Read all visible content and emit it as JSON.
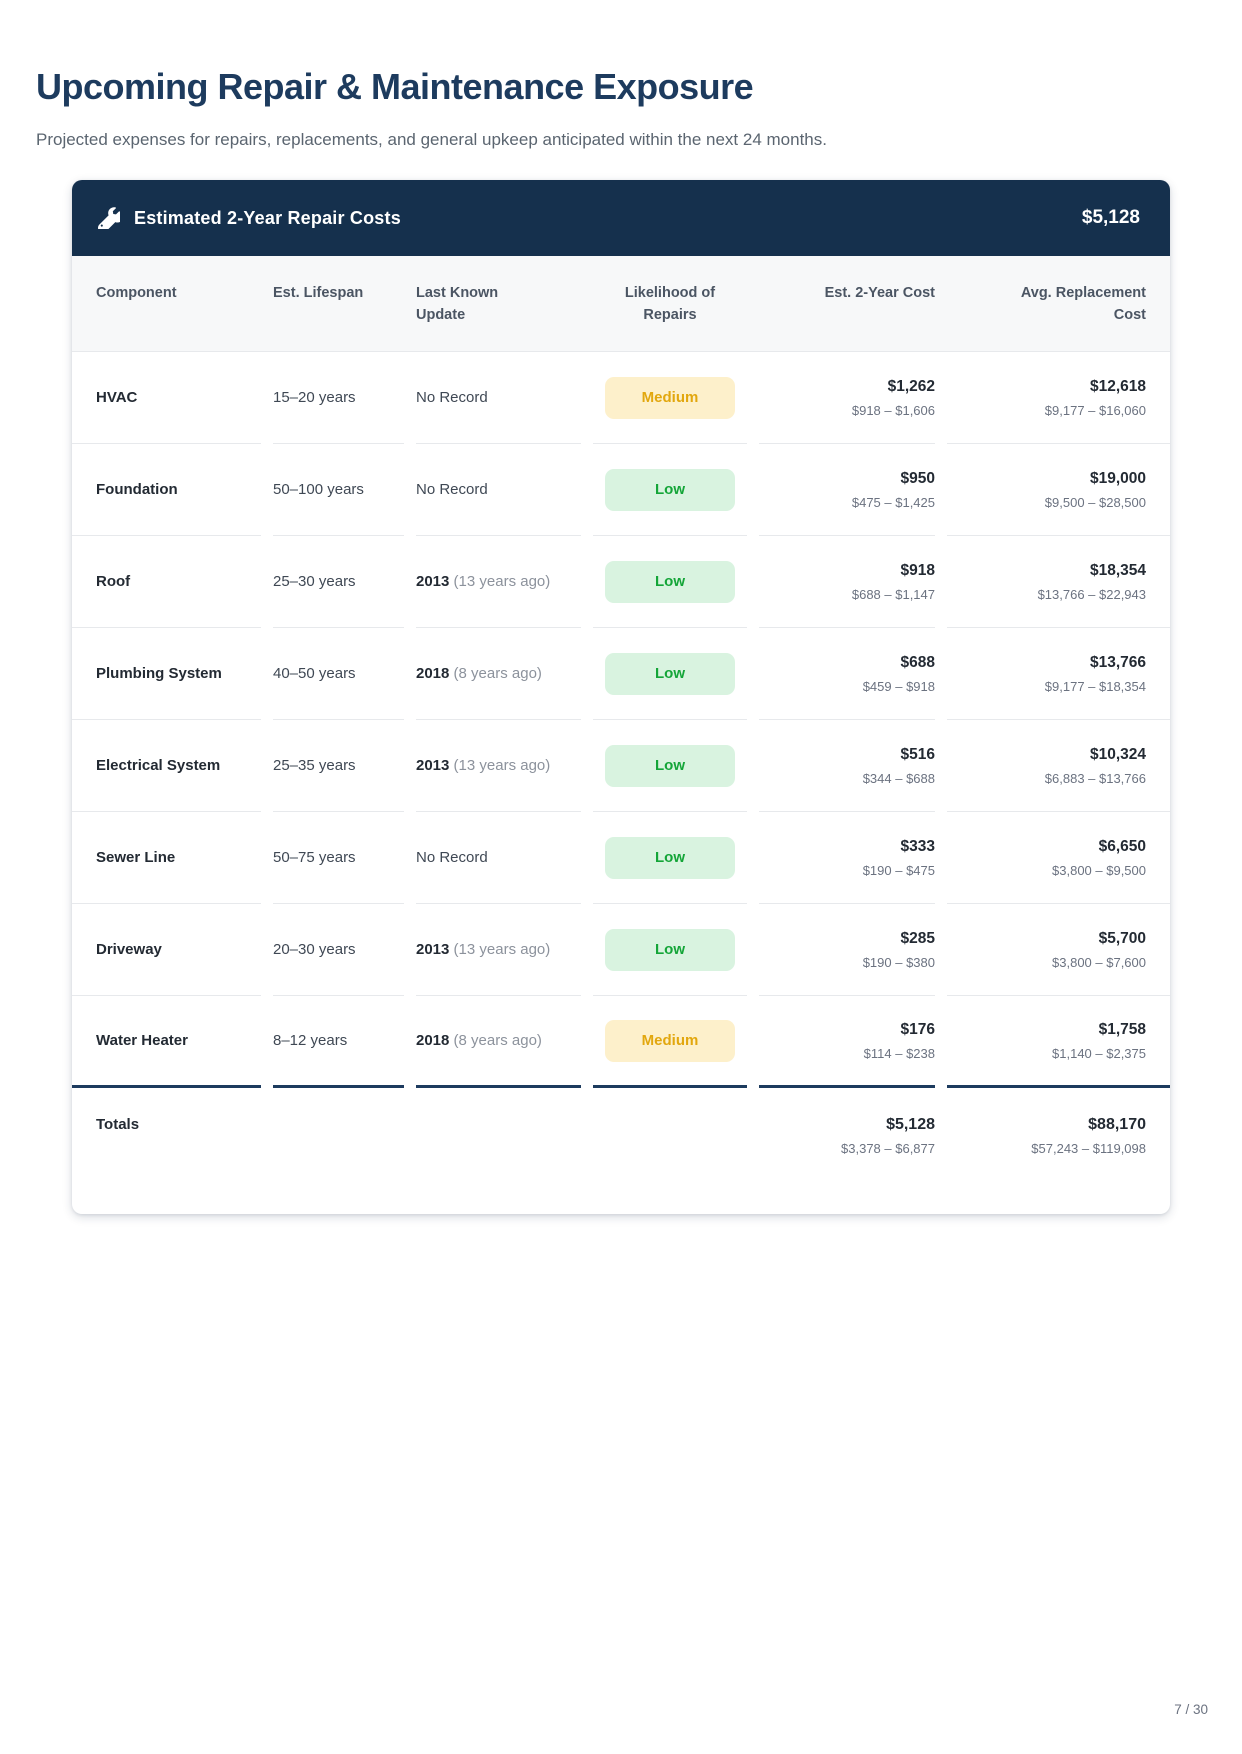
{
  "page": {
    "title": "Upcoming Repair & Maintenance Exposure",
    "subtitle": "Projected expenses for repairs, replacements, and general upkeep anticipated within the next 24 months.",
    "page_number": "7 / 30"
  },
  "card": {
    "header": {
      "icon": "wrench-icon",
      "title": "Estimated 2-Year Repair Costs",
      "total": "$5,128"
    },
    "columns": [
      "Component",
      "Est. Lifespan",
      "Last Known Update",
      "Likelihood of Repairs",
      "Est. 2-Year Cost",
      "Avg. Replacement Cost"
    ],
    "rows": [
      {
        "component": "HVAC",
        "lifespan": "15–20 years",
        "update": "No Record",
        "update_note": "",
        "likelihood": "Medium",
        "cost2yr": "$1,262",
        "cost2yr_range": "$918 – $1,606",
        "replacement": "$12,618",
        "replacement_range": "$9,177 – $16,060"
      },
      {
        "component": "Foundation",
        "lifespan": "50–100 years",
        "update": "No Record",
        "update_note": "",
        "likelihood": "Low",
        "cost2yr": "$950",
        "cost2yr_range": "$475 – $1,425",
        "replacement": "$19,000",
        "replacement_range": "$9,500 – $28,500"
      },
      {
        "component": "Roof",
        "lifespan": "25–30 years",
        "update": "2013",
        "update_note": "(13 years ago)",
        "likelihood": "Low",
        "cost2yr": "$918",
        "cost2yr_range": "$688 – $1,147",
        "replacement": "$18,354",
        "replacement_range": "$13,766 – $22,943"
      },
      {
        "component": "Plumbing System",
        "lifespan": "40–50 years",
        "update": "2018",
        "update_note": "(8 years ago)",
        "likelihood": "Low",
        "cost2yr": "$688",
        "cost2yr_range": "$459 – $918",
        "replacement": "$13,766",
        "replacement_range": "$9,177 – $18,354"
      },
      {
        "component": "Electrical System",
        "lifespan": "25–35 years",
        "update": "2013",
        "update_note": "(13 years ago)",
        "likelihood": "Low",
        "cost2yr": "$516",
        "cost2yr_range": "$344 – $688",
        "replacement": "$10,324",
        "replacement_range": "$6,883 – $13,766"
      },
      {
        "component": "Sewer Line",
        "lifespan": "50–75 years",
        "update": "No Record",
        "update_note": "",
        "likelihood": "Low",
        "cost2yr": "$333",
        "cost2yr_range": "$190 – $475",
        "replacement": "$6,650",
        "replacement_range": "$3,800 – $9,500"
      },
      {
        "component": "Driveway",
        "lifespan": "20–30 years",
        "update": "2013",
        "update_note": "(13 years ago)",
        "likelihood": "Low",
        "cost2yr": "$285",
        "cost2yr_range": "$190 – $380",
        "replacement": "$5,700",
        "replacement_range": "$3,800 – $7,600"
      },
      {
        "component": "Water Heater",
        "lifespan": "8–12 years",
        "update": "2018",
        "update_note": "(8 years ago)",
        "likelihood": "Medium",
        "cost2yr": "$176",
        "cost2yr_range": "$114 – $238",
        "replacement": "$1,758",
        "replacement_range": "$1,140 – $2,375"
      }
    ],
    "totals": {
      "label": "Totals",
      "cost2yr": "$5,128",
      "cost2yr_range": "$3,378 – $6,877",
      "replacement": "$88,170",
      "replacement_range": "$57,243 – $119,098"
    }
  },
  "colors": {
    "navy": "#15304d",
    "title_navy": "#1d3b5e",
    "badge_medium_bg": "#fdf0cb",
    "badge_medium_text": "#e2a70e",
    "badge_low_bg": "#d9f3e0",
    "badge_low_text": "#14a538",
    "divider": "#e7e9ec",
    "muted": "#6b7280"
  }
}
